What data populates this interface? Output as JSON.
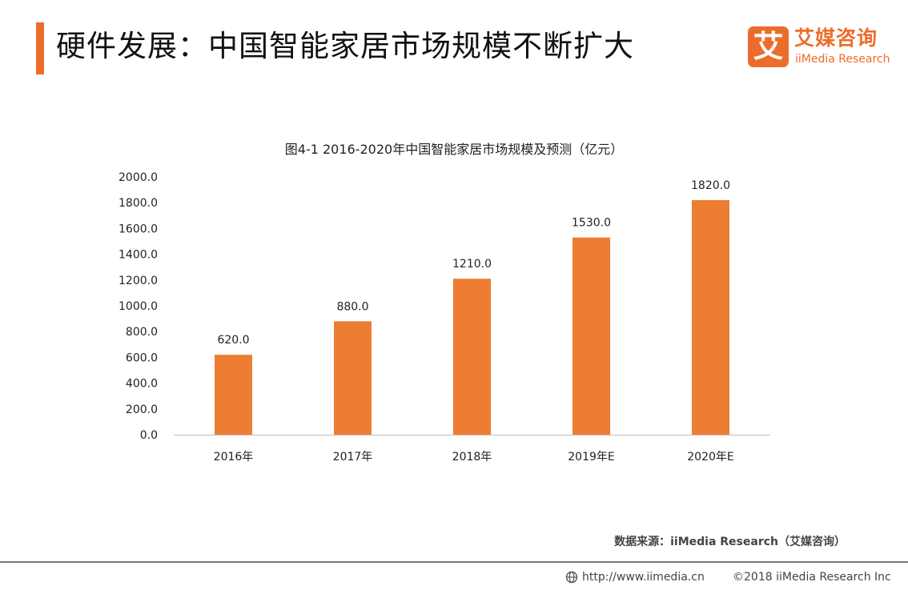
{
  "header": {
    "title": "硬件发展：中国智能家居市场规模不断扩大",
    "accent_color": "#ec6d2b"
  },
  "logo": {
    "mark": "艾",
    "cn": "艾媒咨询",
    "en": "iiMedia Research"
  },
  "chart_data": {
    "type": "bar",
    "title": "图4-1 2016-2020年中国智能家居市场规模及预测（亿元）",
    "categories": [
      "2016年",
      "2017年",
      "2018年",
      "2019年E",
      "2020年E"
    ],
    "values": [
      620.0,
      880.0,
      1210.0,
      1530.0,
      1820.0
    ],
    "value_labels": [
      "620.0",
      "880.0",
      "1210.0",
      "1530.0",
      "1820.0"
    ],
    "yticks": [
      "0.0",
      "200.0",
      "400.0",
      "600.0",
      "800.0",
      "1000.0",
      "1200.0",
      "1400.0",
      "1600.0",
      "1800.0",
      "2000.0"
    ],
    "ylim": [
      0,
      2000
    ],
    "xlabel": "",
    "ylabel": "",
    "grid": false,
    "bar_color": "#ed7d31"
  },
  "source": "数据来源：iiMedia Research（艾媒咨询）",
  "footer": {
    "url": "http://www.iimedia.cn",
    "copyright": "©2018 iiMedia Research Inc",
    "globe_icon": "globe-icon"
  }
}
